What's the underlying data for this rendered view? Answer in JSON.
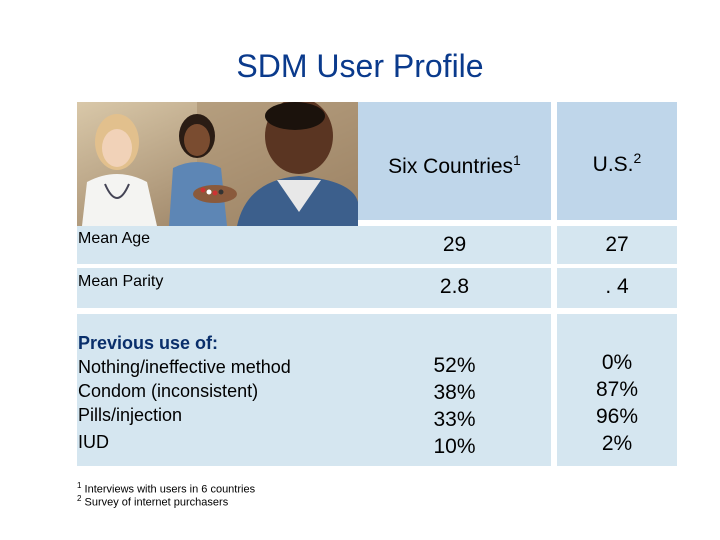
{
  "title": "SDM User Profile",
  "columns": {
    "six_countries": "Six Countries",
    "six_countries_sup": "1",
    "us": "U.S.",
    "us_sup": "2"
  },
  "rows": [
    {
      "label": "Mean Age",
      "six": "29",
      "us": "27"
    },
    {
      "label": "Mean Parity",
      "six": "2.8",
      "us": ". 4"
    }
  ],
  "previous_use": {
    "heading": "Previous use of:",
    "items": [
      {
        "label": "Nothing/ineffective method",
        "six": "52%",
        "us": "0%"
      },
      {
        "label": "Condom (inconsistent)",
        "six": "38%",
        "us": "87%"
      },
      {
        "label": "Pills/injection",
        "six": "33%",
        "us": "96%"
      },
      {
        "label": "IUD",
        "six": "10%",
        "us": "2%"
      }
    ]
  },
  "footnotes": [
    {
      "mark": "1",
      "text": "Interviews with users in 6 countries"
    },
    {
      "mark": "2",
      "text": "Survey of internet purchasers"
    }
  ]
}
